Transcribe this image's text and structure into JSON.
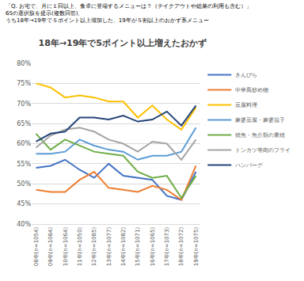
{
  "chart_data": {
    "type": "line",
    "title": "18年→19年で5ポイント以上増えたおかず",
    "subtitle": [
      "「Q. お宅で、月に１回以上、食卓に登場するメニューは？（テイクアウトや総菜の利用も含む）」",
      "65の選択肢を提示(複数回答)、",
      "うち18年→19年で５ポイント以上増加した、19年が５割以上のおかず系メニュー"
    ],
    "categories": [
      "08年(n=1054)",
      "09年(n=1084)",
      "10年(n=1064)",
      "11年(n=1050)",
      "12年(n=1085)",
      "13年(n=1077)",
      "14年(n=1082)",
      "15年(n=1071)",
      "16年(n=1065)",
      "17年(n=1073)",
      "18年(n=1072)",
      "19年(n=1075)"
    ],
    "series": [
      {
        "name": "きんぴら",
        "color": "#4472c4",
        "values": [
          54,
          54.5,
          56,
          53.5,
          51.5,
          55,
          52,
          51.5,
          51,
          47,
          46,
          53
        ]
      },
      {
        "name": "中華風炒め物",
        "color": "#ed7d31",
        "values": [
          48.5,
          48,
          48,
          51,
          53,
          49,
          48.5,
          48,
          49.5,
          48.5,
          46,
          54.5
        ]
      },
      {
        "name": "豆腐料理",
        "color": "#ffc000",
        "values": [
          75,
          74,
          71.5,
          72,
          71.5,
          70.5,
          70.5,
          66.5,
          69.5,
          66,
          63.5,
          69
        ]
      },
      {
        "name": "麻婆豆腐・麻婆茄子",
        "color": "#5b9bd5",
        "values": [
          57.5,
          57.5,
          58,
          61,
          59.5,
          58.5,
          58,
          56,
          57,
          57,
          58,
          64
        ]
      },
      {
        "name": "焼魚・魚介類の素焼",
        "color": "#70ad47",
        "values": [
          62.5,
          58.5,
          61,
          59.5,
          58,
          57.5,
          57,
          53,
          51.5,
          52,
          46.5,
          52
        ]
      },
      {
        "name": "トンカツ等肉のフライ",
        "color": "#a5a5a5",
        "values": [
          59,
          62,
          63.5,
          64,
          63,
          61,
          60,
          58,
          60.5,
          60,
          56,
          61
        ]
      },
      {
        "name": "ハンバーグ",
        "color": "#264478",
        "values": [
          60.5,
          62.5,
          63,
          66.5,
          66.5,
          66,
          67,
          65.5,
          66,
          68,
          64.5,
          69.5
        ]
      }
    ],
    "ylim": [
      40,
      80
    ],
    "yticks": [
      {
        "value": 40,
        "label": "40%"
      },
      {
        "value": 45,
        "label": "45%"
      },
      {
        "value": 50,
        "label": "50%"
      },
      {
        "value": 55,
        "label": "55%"
      },
      {
        "value": 60,
        "label": "60%"
      },
      {
        "value": 65,
        "label": "65%"
      },
      {
        "value": 70,
        "label": "70%"
      },
      {
        "value": 75,
        "label": "75%"
      },
      {
        "value": 80,
        "label": "80%"
      }
    ],
    "grid": true,
    "legend": "right"
  }
}
